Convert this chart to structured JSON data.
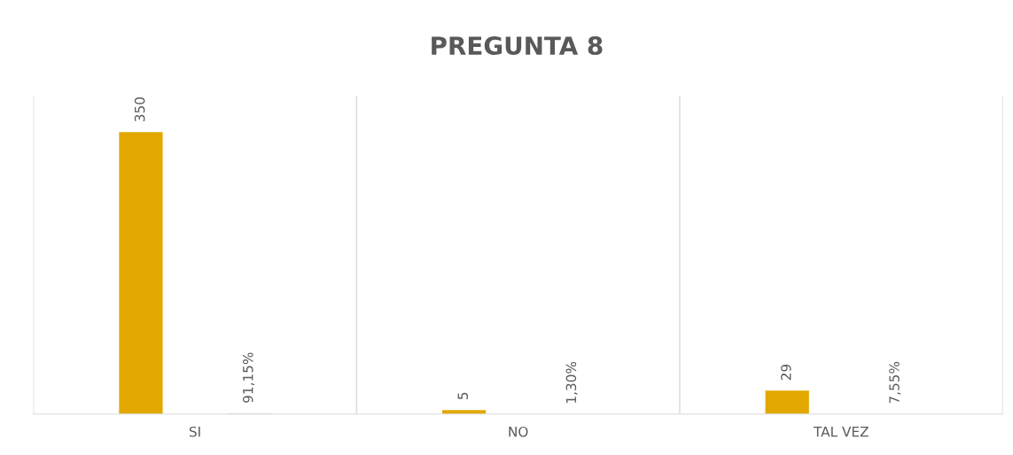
{
  "chart_data": {
    "type": "bar",
    "title": "PREGUNTA 8",
    "categories": [
      "SI",
      "NO",
      "TAL VEZ"
    ],
    "series": [
      {
        "color": "#e2a800",
        "values": [
          350,
          5,
          29
        ],
        "value_labels": [
          "350",
          "5",
          "29"
        ]
      },
      {
        "color": "#a5a5a5",
        "values": [
          0.9115,
          0.013,
          0.0755
        ],
        "value_labels": [
          "91,15%",
          "1,30%",
          "7,55%"
        ]
      }
    ],
    "grid": "x",
    "tick_labels": "x",
    "legend": false
  }
}
